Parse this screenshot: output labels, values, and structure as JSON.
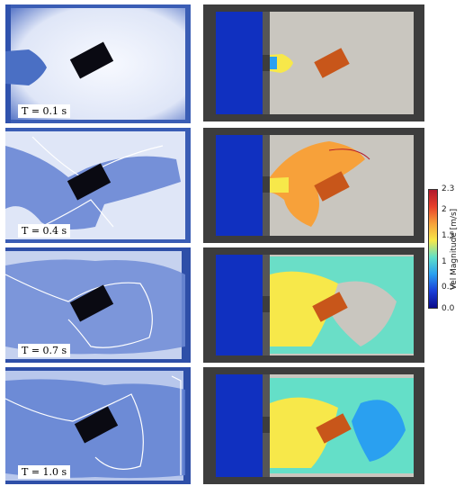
{
  "rows": [
    {
      "time_label": "T = 0.1 s"
    },
    {
      "time_label": "T = 0.4 s"
    },
    {
      "time_label": "T = 0.7 s"
    },
    {
      "time_label": "T = 1.0 s"
    }
  ],
  "colorbar": {
    "title": "Vel Magnitude [m/s]",
    "ticks": [
      "2.3",
      "2",
      "1.5",
      "1",
      "0.5",
      "0.0"
    ],
    "gradient_colors": [
      "#b2182b",
      "#e8402a",
      "#f7a13a",
      "#f7e84a",
      "#5fe0c8",
      "#2aa0f0",
      "#1a3fd8",
      "#0a0a8a"
    ]
  },
  "colors": {
    "experiment_bg": "#eef2fb",
    "experiment_water": "#4a6fc4",
    "obstacle_experiment": "#0a0a12",
    "obstacle_simulation": "#c8561a",
    "sim_frame": "#3d3d3d",
    "sim_floor": "#c9c6bf",
    "reservoir": "#1030c0"
  }
}
